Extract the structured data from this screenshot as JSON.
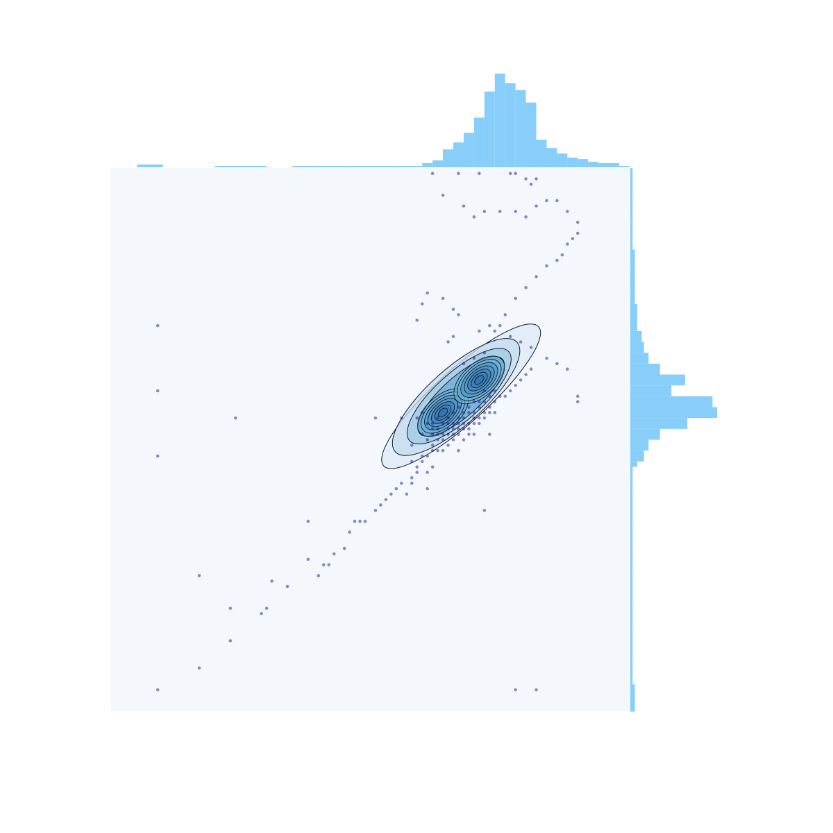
{
  "chart_data": {
    "type": "scatter",
    "kind": "joint-plot",
    "title": "",
    "xlabel": "",
    "ylabel": "",
    "axes_visible": false,
    "grid": false,
    "xlim": [
      0,
      100
    ],
    "ylim": [
      0,
      100
    ],
    "colors": {
      "plot_background": "#f4f8fd",
      "marginal_bars": "#87cefa",
      "points": "#1a1a8c",
      "contour_line": "#0d1b2a",
      "density_fills": [
        "#dde9f6",
        "#c6dbef",
        "#9ecae1",
        "#6baed6",
        "#4a8fc4",
        "#3a7bb5",
        "#2e6aa3"
      ]
    },
    "points": [
      [
        9,
        4
      ],
      [
        9,
        47
      ],
      [
        9,
        59
      ],
      [
        9,
        71
      ],
      [
        17,
        8
      ],
      [
        17,
        25
      ],
      [
        23,
        13
      ],
      [
        23,
        19
      ],
      [
        24,
        54
      ],
      [
        29,
        18
      ],
      [
        30,
        19
      ],
      [
        31,
        24
      ],
      [
        34,
        23
      ],
      [
        38,
        28
      ],
      [
        38,
        35
      ],
      [
        40,
        25
      ],
      [
        41,
        27
      ],
      [
        42,
        27
      ],
      [
        43,
        29
      ],
      [
        45,
        30
      ],
      [
        46,
        33
      ],
      [
        47,
        35
      ],
      [
        48,
        35
      ],
      [
        49,
        35
      ],
      [
        51,
        37
      ],
      [
        51,
        54
      ],
      [
        52,
        38
      ],
      [
        53,
        39
      ],
      [
        54,
        40
      ],
      [
        55,
        41
      ],
      [
        56,
        42
      ],
      [
        56,
        54
      ],
      [
        57,
        40
      ],
      [
        58,
        42
      ],
      [
        58,
        43
      ],
      [
        58,
        46
      ],
      [
        58,
        49
      ],
      [
        59,
        44
      ],
      [
        59,
        45
      ],
      [
        59,
        54
      ],
      [
        60,
        46
      ],
      [
        60,
        47
      ],
      [
        60,
        51
      ],
      [
        60,
        55
      ],
      [
        61,
        41
      ],
      [
        61,
        44
      ],
      [
        61,
        47
      ],
      [
        61,
        50
      ],
      [
        61,
        53
      ],
      [
        62,
        45
      ],
      [
        62,
        48
      ],
      [
        62,
        49
      ],
      [
        62,
        51
      ],
      [
        62,
        52
      ],
      [
        62,
        53
      ],
      [
        63,
        48
      ],
      [
        63,
        50
      ],
      [
        63,
        51
      ],
      [
        63,
        52
      ],
      [
        63,
        54
      ],
      [
        64,
        48
      ],
      [
        64,
        50
      ],
      [
        64,
        51
      ],
      [
        64,
        53
      ],
      [
        65,
        49
      ],
      [
        65,
        51
      ],
      [
        65,
        52
      ],
      [
        65,
        53
      ],
      [
        65,
        54
      ],
      [
        66,
        50
      ],
      [
        66,
        51
      ],
      [
        66,
        52
      ],
      [
        66,
        53
      ],
      [
        66,
        55
      ],
      [
        67,
        48
      ],
      [
        67,
        51
      ],
      [
        67,
        52
      ],
      [
        67,
        53
      ],
      [
        67,
        54
      ],
      [
        67,
        56
      ],
      [
        68,
        50
      ],
      [
        68,
        52
      ],
      [
        68,
        53
      ],
      [
        68,
        54
      ],
      [
        68,
        55
      ],
      [
        69,
        51
      ],
      [
        69,
        52
      ],
      [
        69,
        53
      ],
      [
        69,
        55
      ],
      [
        69,
        56
      ],
      [
        70,
        51
      ],
      [
        70,
        53
      ],
      [
        70,
        54
      ],
      [
        70,
        55
      ],
      [
        70,
        57
      ],
      [
        71,
        53
      ],
      [
        71,
        54
      ],
      [
        71,
        56
      ],
      [
        71,
        57
      ],
      [
        72,
        54
      ],
      [
        72,
        55
      ],
      [
        72,
        57
      ],
      [
        72,
        59
      ],
      [
        73,
        51
      ],
      [
        73,
        55
      ],
      [
        73,
        56
      ],
      [
        73,
        58
      ],
      [
        74,
        55
      ],
      [
        74,
        57
      ],
      [
        74,
        59
      ],
      [
        75,
        58
      ],
      [
        76,
        58
      ],
      [
        77,
        59
      ],
      [
        78,
        60
      ],
      [
        79,
        61
      ],
      [
        80,
        62
      ],
      [
        81,
        63
      ],
      [
        65,
        68
      ],
      [
        66,
        69
      ],
      [
        68,
        64
      ],
      [
        70,
        65
      ],
      [
        72,
        66
      ],
      [
        74,
        70
      ],
      [
        76,
        73
      ],
      [
        78,
        76
      ],
      [
        80,
        78
      ],
      [
        82,
        80
      ],
      [
        84,
        82
      ],
      [
        86,
        83
      ],
      [
        87,
        84
      ],
      [
        88,
        86
      ],
      [
        89,
        87
      ],
      [
        90,
        88
      ],
      [
        64,
        95
      ],
      [
        68,
        93
      ],
      [
        70,
        91
      ],
      [
        72,
        92
      ],
      [
        75,
        92
      ],
      [
        78,
        92
      ],
      [
        80,
        91
      ],
      [
        82,
        93
      ],
      [
        84,
        94
      ],
      [
        86,
        94
      ],
      [
        88,
        92
      ],
      [
        90,
        90
      ],
      [
        62,
        99
      ],
      [
        67,
        99
      ],
      [
        71,
        99
      ],
      [
        77,
        99
      ],
      [
        78,
        99
      ],
      [
        80,
        98
      ],
      [
        81,
        97
      ],
      [
        82,
        98
      ],
      [
        59,
        72
      ],
      [
        60,
        75
      ],
      [
        61,
        77
      ],
      [
        64,
        76
      ],
      [
        66,
        74
      ],
      [
        67,
        73
      ],
      [
        71,
        70
      ],
      [
        73,
        71
      ],
      [
        75,
        71
      ],
      [
        77,
        69
      ],
      [
        79,
        68
      ],
      [
        81,
        67
      ],
      [
        84,
        65
      ],
      [
        86,
        64
      ],
      [
        88,
        63
      ],
      [
        90,
        58
      ],
      [
        90,
        57
      ],
      [
        78,
        4
      ],
      [
        82,
        4
      ],
      [
        72,
        37
      ]
    ],
    "density_peaks": [
      [
        64,
        55
      ],
      [
        71,
        61
      ]
    ],
    "marginal_x": {
      "bin_edges": [
        0,
        5,
        10,
        15,
        20,
        25,
        30,
        35,
        40,
        45,
        50,
        55,
        60,
        62,
        64,
        66,
        68,
        70,
        72,
        74,
        76,
        78,
        80,
        82,
        84,
        86,
        88,
        90,
        92,
        94,
        96,
        98,
        100
      ],
      "counts": [
        0,
        2,
        0,
        0,
        1,
        1,
        0,
        1,
        1,
        1,
        1,
        1,
        3,
        5,
        13,
        18,
        25,
        36,
        55,
        68,
        61,
        56,
        47,
        20,
        14,
        10,
        7,
        6,
        4,
        3,
        3,
        1
      ]
    },
    "marginal_y": {
      "bin_edges": [
        0,
        5,
        10,
        15,
        20,
        25,
        30,
        35,
        40,
        45,
        46,
        48,
        50,
        52,
        54,
        56,
        58,
        60,
        62,
        64,
        66,
        68,
        70,
        75,
        80,
        85,
        90,
        95,
        100
      ],
      "counts": [
        2,
        1,
        1,
        1,
        1,
        1,
        1,
        1,
        1,
        3,
        6,
        8,
        13,
        25,
        38,
        36,
        18,
        24,
        13,
        8,
        6,
        5,
        3,
        2,
        2,
        1,
        1,
        1
      ]
    }
  }
}
